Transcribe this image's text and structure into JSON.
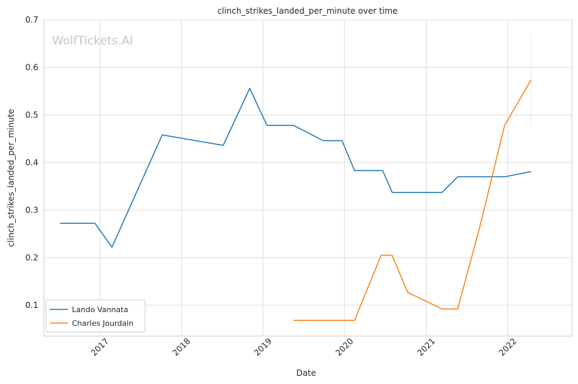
{
  "watermark": "WolfTickets.AI",
  "chart_data": {
    "type": "line",
    "title": "clinch_strikes_landed_per_minute over time",
    "xlabel": "Date",
    "ylabel": "clinch_strikes_landed_per_minute",
    "x_ticks": [
      "2017",
      "2018",
      "2019",
      "2020",
      "2021",
      "2022"
    ],
    "y_ticks": [
      "0.1",
      "0.2",
      "0.3",
      "0.4",
      "0.5",
      "0.6",
      "0.7"
    ],
    "xlim": [
      "2016-04-25",
      "2022-10-15"
    ],
    "ylim": [
      0.035,
      0.7
    ],
    "grid": true,
    "legend_position": "lower-left",
    "series": [
      {
        "name": "Lando Vannata",
        "color": "#1f77b4",
        "points": [
          [
            "2016-07-07",
            0.272
          ],
          [
            "2016-12-10",
            0.272
          ],
          [
            "2017-02-24",
            0.222
          ],
          [
            "2017-10-07",
            0.458
          ],
          [
            "2018-07-07",
            0.436
          ],
          [
            "2018-11-03",
            0.556
          ],
          [
            "2019-01-19",
            0.478
          ],
          [
            "2019-05-18",
            0.478
          ],
          [
            "2019-09-28",
            0.446
          ],
          [
            "2019-12-21",
            0.446
          ],
          [
            "2020-02-15",
            0.383
          ],
          [
            "2020-06-20",
            0.383
          ],
          [
            "2020-08-02",
            0.337
          ],
          [
            "2021-03-13",
            0.337
          ],
          [
            "2021-05-22",
            0.37
          ],
          [
            "2021-12-18",
            0.37
          ],
          [
            "2022-04-16",
            0.381
          ]
        ]
      },
      {
        "name": "Charles Jourdain",
        "color": "#ff7f0e",
        "points": [
          [
            "2019-05-18",
            0.068
          ],
          [
            "2020-02-15",
            0.068
          ],
          [
            "2020-06-13",
            0.205
          ],
          [
            "2020-08-01",
            0.205
          ],
          [
            "2020-10-10",
            0.127
          ],
          [
            "2021-03-13",
            0.092
          ],
          [
            "2021-05-22",
            0.092
          ],
          [
            "2021-09-01",
            0.27
          ],
          [
            "2021-12-18",
            0.478
          ],
          [
            "2022-04-16",
            0.574
          ]
        ]
      }
    ],
    "error_band": {
      "series": "Charles Jourdain",
      "x": "2022-04-16",
      "low": 0.478,
      "high": 0.67,
      "color": "#ff7f0e"
    }
  }
}
